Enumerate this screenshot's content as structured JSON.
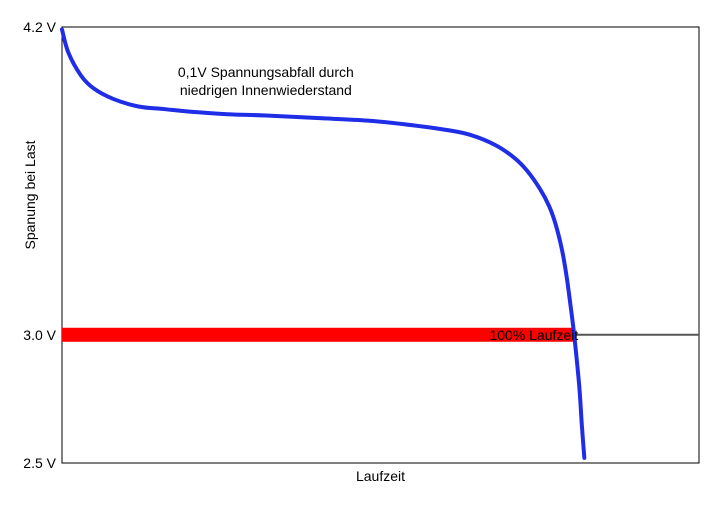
{
  "chart_data": {
    "type": "line",
    "title": "",
    "xlabel": "Laufzeit",
    "ylabel": "Spanung bei Last",
    "ylim": [
      2.5,
      4.2
    ],
    "xlim": [
      0,
      100
    ],
    "y_ticks": [
      {
        "value": 4.2,
        "label": "4.2 V"
      },
      {
        "value": 3.0,
        "label": "3.0 V"
      },
      {
        "value": 2.5,
        "label": "2.5 V"
      }
    ],
    "grid": false,
    "legend": "none",
    "series": [
      {
        "color": "#1f2ee6",
        "x": [
          0,
          1,
          3,
          5,
          8,
          12,
          16,
          20,
          26,
          32,
          40,
          48,
          54,
          60,
          64,
          68,
          71,
          73,
          75,
          76.5,
          77.5,
          78.5,
          79.2,
          79.8,
          80.4,
          81.2,
          81.6,
          82
        ],
        "y": [
          4.19,
          4.1,
          4.01,
          3.96,
          3.92,
          3.89,
          3.88,
          3.87,
          3.86,
          3.855,
          3.845,
          3.835,
          3.82,
          3.8,
          3.78,
          3.74,
          3.69,
          3.64,
          3.57,
          3.5,
          3.43,
          3.33,
          3.23,
          3.12,
          3.0,
          2.8,
          2.65,
          2.52
        ]
      }
    ],
    "cutoff_line": {
      "y": 3.0,
      "color": "#555555"
    },
    "highlight_band": {
      "y": 3.0,
      "x_start": 0,
      "x_end": 80.4,
      "color": "#ff0000"
    },
    "annotations": [
      {
        "lines": [
          "0,1V Spannungsabfall durch",
          "niedrigen Innenwiederstand"
        ],
        "x": 32,
        "y": 3.95
      },
      {
        "lines": [
          "100% Laufzeit"
        ],
        "x": 78,
        "y": 3.0
      }
    ]
  },
  "colors": {
    "axis": "#000000",
    "series": "#1f2ee6",
    "band": "#ff0000",
    "cutoff": "#555555"
  }
}
